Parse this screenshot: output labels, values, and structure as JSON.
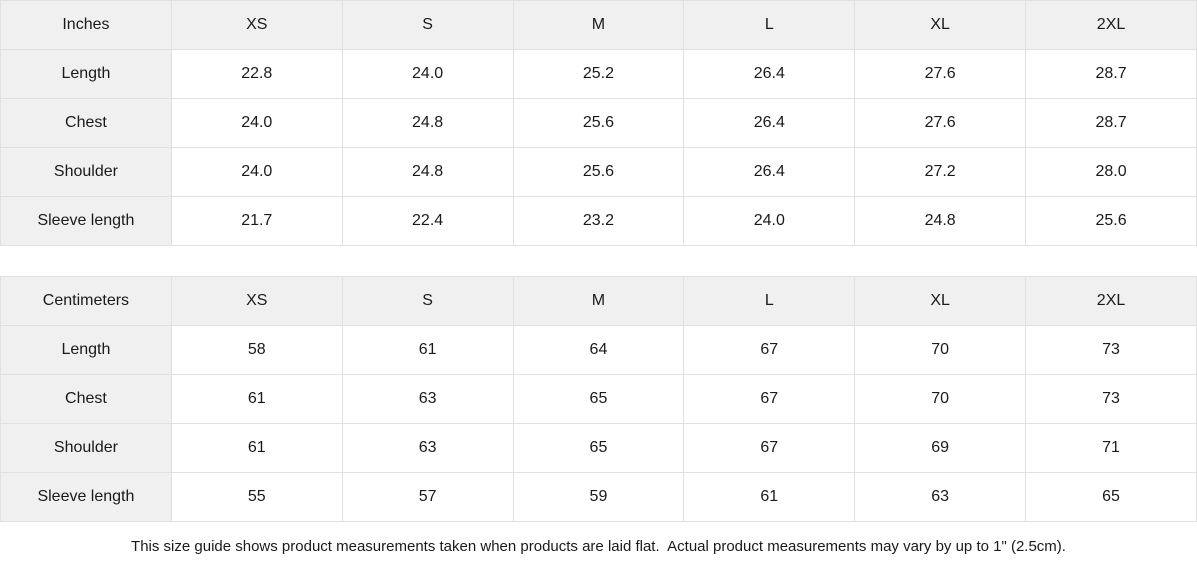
{
  "colors": {
    "header_bg": "#f0f0f0",
    "label_column_bg": "#f0f0f0",
    "border": "#e0e0e0",
    "cell_bg": "#ffffff",
    "text": "#1a1a1a"
  },
  "tables": [
    {
      "unit_label": "Inches",
      "sizes": [
        "XS",
        "S",
        "M",
        "L",
        "XL",
        "2XL"
      ],
      "rows": [
        {
          "label": "Length",
          "values": [
            "22.8",
            "24.0",
            "25.2",
            "26.4",
            "27.6",
            "28.7"
          ]
        },
        {
          "label": "Chest",
          "values": [
            "24.0",
            "24.8",
            "25.6",
            "26.4",
            "27.6",
            "28.7"
          ]
        },
        {
          "label": "Shoulder",
          "values": [
            "24.0",
            "24.8",
            "25.6",
            "26.4",
            "27.2",
            "28.0"
          ]
        },
        {
          "label": "Sleeve length",
          "values": [
            "21.7",
            "22.4",
            "23.2",
            "24.0",
            "24.8",
            "25.6"
          ]
        }
      ]
    },
    {
      "unit_label": "Centimeters",
      "sizes": [
        "XS",
        "S",
        "M",
        "L",
        "XL",
        "2XL"
      ],
      "rows": [
        {
          "label": "Length",
          "values": [
            "58",
            "61",
            "64",
            "67",
            "70",
            "73"
          ]
        },
        {
          "label": "Chest",
          "values": [
            "61",
            "63",
            "65",
            "67",
            "70",
            "73"
          ]
        },
        {
          "label": "Shoulder",
          "values": [
            "61",
            "63",
            "65",
            "67",
            "69",
            "71"
          ]
        },
        {
          "label": "Sleeve length",
          "values": [
            "55",
            "57",
            "59",
            "61",
            "63",
            "65"
          ]
        }
      ]
    }
  ],
  "footer": {
    "note": "This size guide shows product measurements taken when products are laid flat.  Actual product measurements may vary by up to 1\" (2.5cm)."
  }
}
